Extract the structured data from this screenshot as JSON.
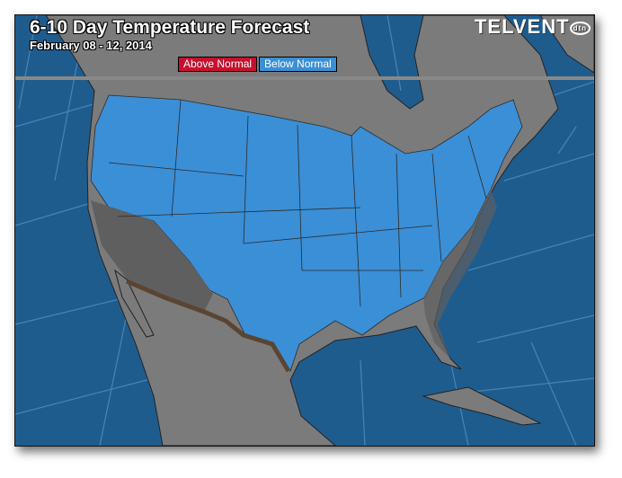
{
  "header": {
    "title": "6-10 Day Temperature Forecast",
    "date_range": "February 08 - 12, 2014",
    "logo": "TELVENT dtn"
  },
  "legend": [
    {
      "label": "Above Normal",
      "color": "#c8102e"
    },
    {
      "label": "Below Normal",
      "color": "#3b8fd6"
    }
  ],
  "colors": {
    "ocean": "#1f5c8e",
    "land": "#7b7b7b",
    "below_normal": "#3b8fd6",
    "southwest_shade": "#5f5f5f",
    "border_shade": "#5a4532"
  }
}
